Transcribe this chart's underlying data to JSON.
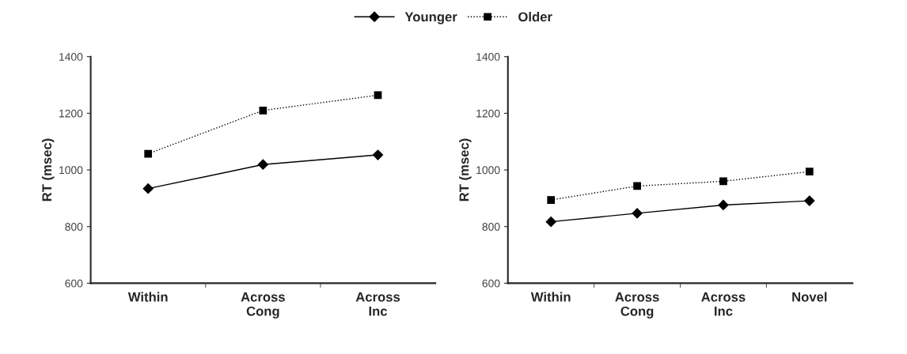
{
  "chart_data": [
    {
      "type": "line",
      "ylabel": "RT (msec)",
      "categories": [
        "Within",
        "Across\nCong",
        "Across\nInc"
      ],
      "ylim": [
        600,
        1400
      ],
      "yticks": [
        600,
        800,
        1000,
        1200,
        1400
      ],
      "grid": false,
      "legend": "top",
      "series": [
        {
          "name": "Younger",
          "color": "#000000",
          "marker": "diamond",
          "line_style": "solid",
          "values": [
            934,
            1019,
            1053
          ]
        },
        {
          "name": "Older",
          "color": "#000000",
          "marker": "square",
          "line_style": "dotted",
          "values": [
            1057,
            1210,
            1264
          ]
        }
      ]
    },
    {
      "type": "line",
      "ylabel": "RT (msec)",
      "categories": [
        "Within",
        "Across\nCong",
        "Across\nInc",
        "Novel"
      ],
      "ylim": [
        600,
        1400
      ],
      "yticks": [
        600,
        800,
        1000,
        1200,
        1400
      ],
      "grid": false,
      "series": [
        {
          "color": "#000000",
          "marker": "diamond",
          "line_style": "solid",
          "values": [
            817,
            847,
            876,
            891
          ]
        },
        {
          "color": "#000000",
          "marker": "square",
          "line_style": "dotted",
          "values": [
            894,
            943,
            960,
            994
          ]
        }
      ]
    }
  ]
}
